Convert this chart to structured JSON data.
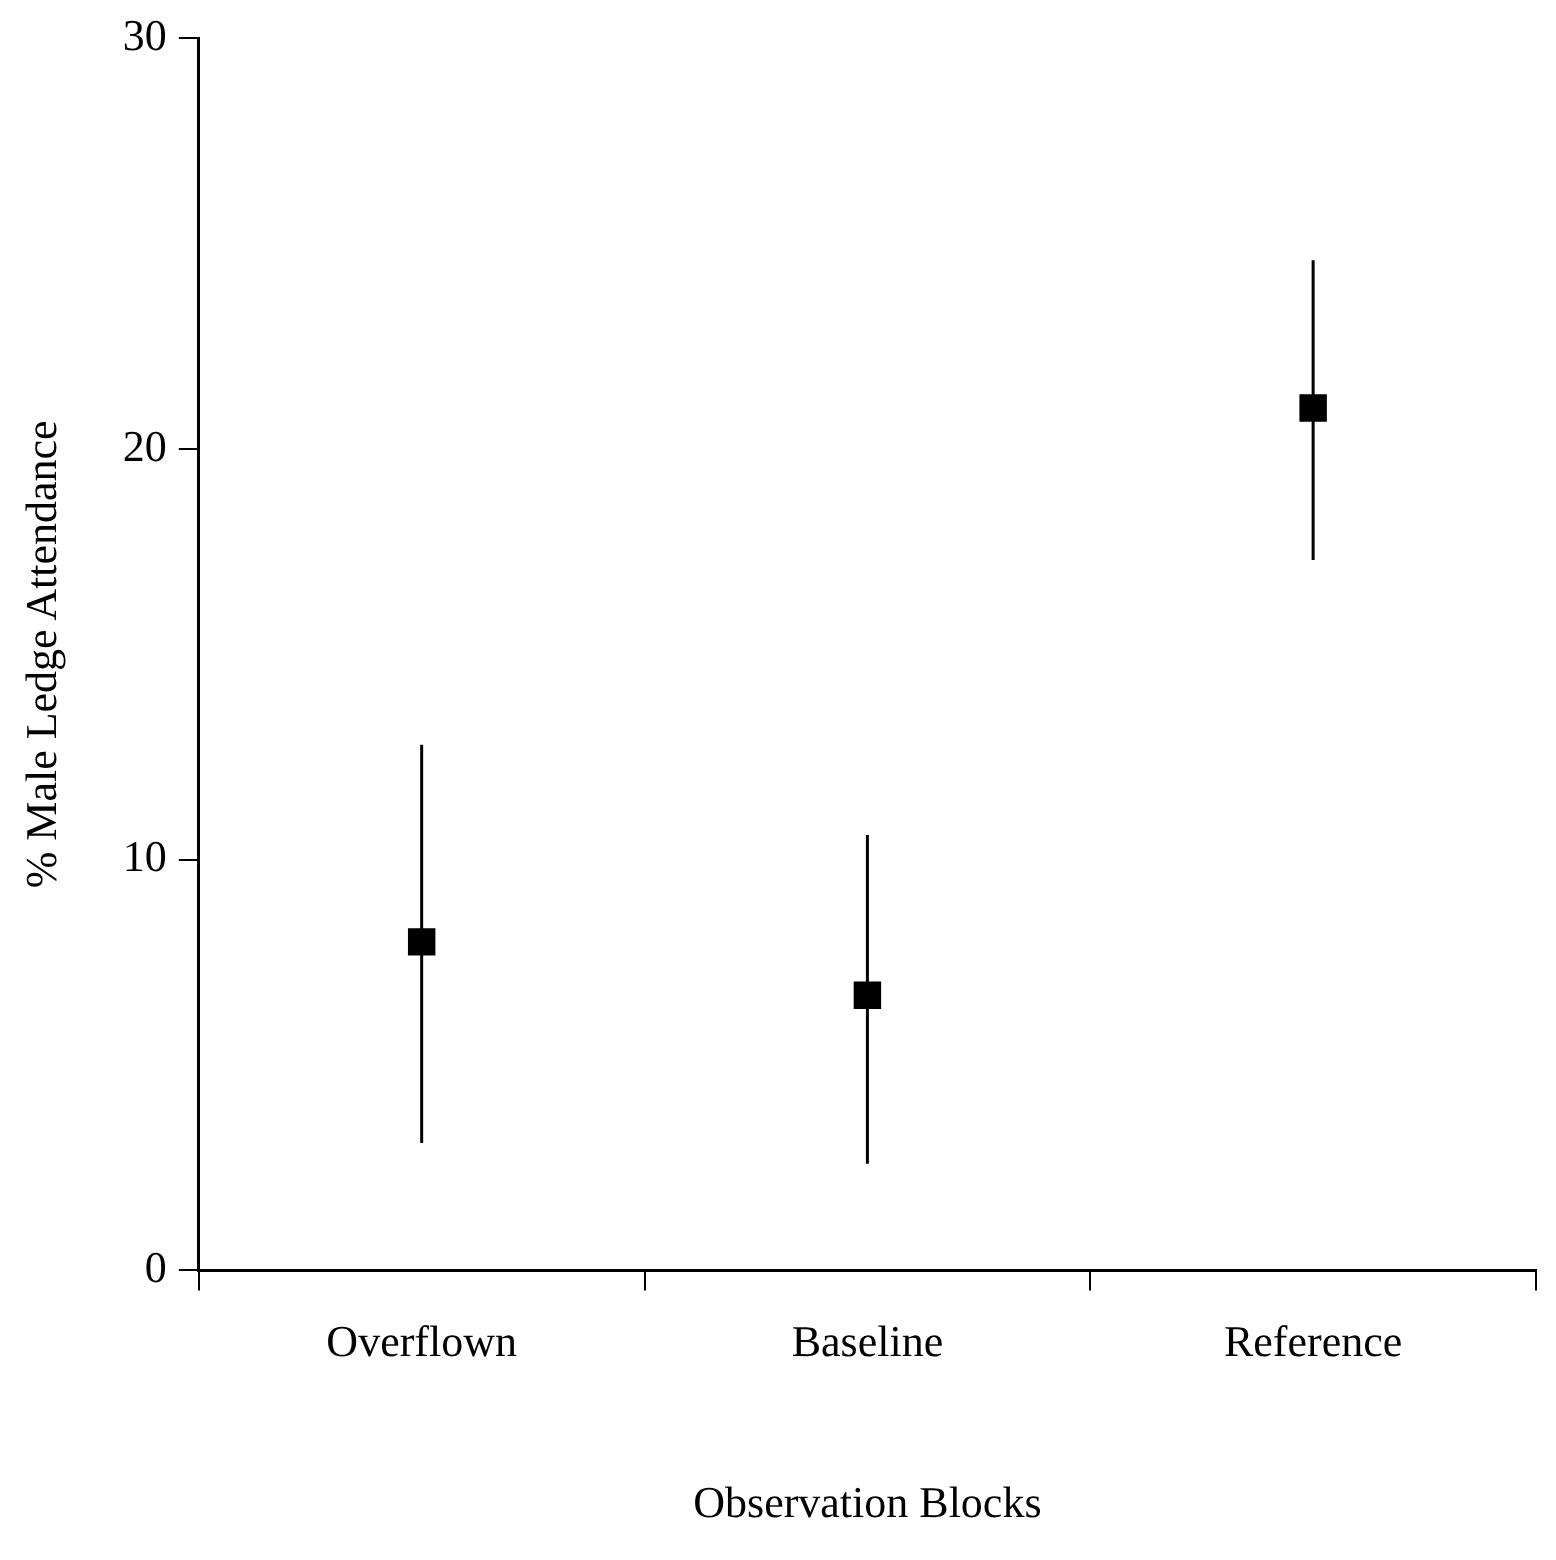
{
  "chart_data": {
    "type": "scatter",
    "xlabel": "Observation Blocks",
    "ylabel": "% Male Ledge Attendance",
    "categories": [
      "Overflown",
      "Baseline",
      "Reference"
    ],
    "series": [
      {
        "color": "#000000",
        "values": [
          8.0,
          6.7,
          21.0
        ],
        "errors": [
          [
            3.1,
            12.8
          ],
          [
            2.6,
            10.6
          ],
          [
            17.3,
            24.6
          ]
        ]
      }
    ],
    "ylim": [
      0,
      30
    ],
    "yticks": [
      0,
      10,
      20,
      30
    ],
    "marker": "square",
    "grid": false,
    "legend": false
  }
}
